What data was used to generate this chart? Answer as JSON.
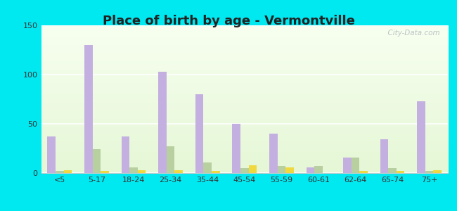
{
  "title": "Place of birth by age - Vermontville",
  "categories": [
    "<5",
    "5-17",
    "18-24",
    "25-34",
    "35-44",
    "45-54",
    "55-59",
    "60-61",
    "62-64",
    "65-74",
    "75+"
  ],
  "born_in_state": [
    37,
    130,
    37,
    103,
    80,
    50,
    40,
    6,
    16,
    34,
    73
  ],
  "born_other_state": [
    2,
    24,
    6,
    27,
    11,
    5,
    7,
    7,
    16,
    5,
    2
  ],
  "foreign_born": [
    3,
    2,
    3,
    3,
    2,
    8,
    6,
    0,
    2,
    2,
    3
  ],
  "bar_color_state": "#c4b0e0",
  "bar_color_other": "#b8cfa0",
  "bar_color_foreign": "#f0d840",
  "outer_background": "#00e8f0",
  "ylim": [
    0,
    150
  ],
  "yticks": [
    0,
    50,
    100,
    150
  ],
  "bar_width": 0.22,
  "watermark": "  City-Data.com"
}
